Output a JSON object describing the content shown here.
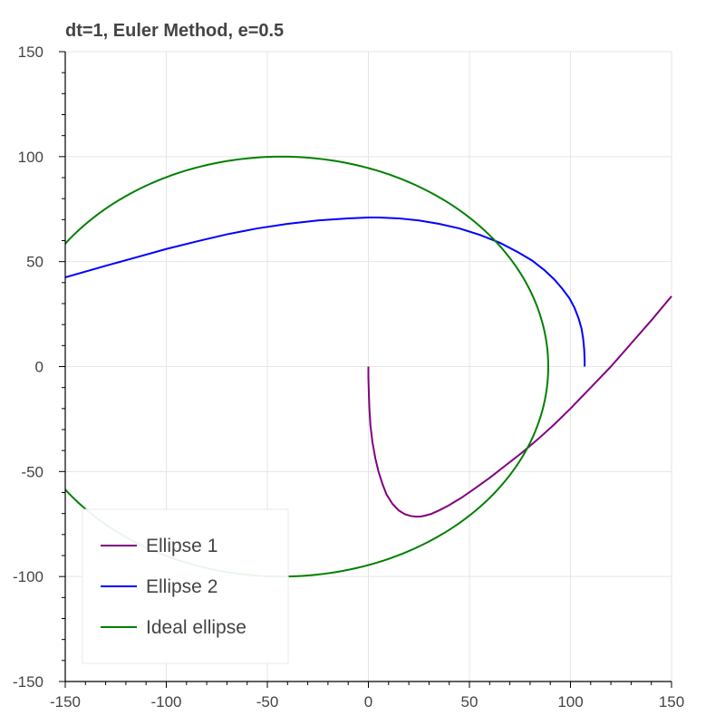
{
  "chart_data": {
    "type": "line",
    "title": "dt=1, Euler Method, e=0.5",
    "xlabel": "",
    "ylabel": "",
    "xlim": [
      -150,
      150
    ],
    "ylim": [
      -150,
      150
    ],
    "x_ticks": [
      -150,
      -100,
      -50,
      0,
      50,
      100,
      150
    ],
    "y_ticks": [
      -150,
      -100,
      -50,
      0,
      50,
      100,
      150
    ],
    "grid": true,
    "legend_position": "bottom-left",
    "series": [
      {
        "name": "Ellipse 1",
        "color": "#800080",
        "x": [
          0,
          0,
          0.2,
          0.5,
          1,
          2,
          3.5,
          5,
          7,
          9,
          12,
          15,
          18,
          21,
          24,
          26,
          28,
          31,
          35,
          40,
          46,
          52,
          60,
          68,
          76,
          84,
          92,
          100,
          110,
          120,
          130,
          140,
          150
        ],
        "y": [
          0,
          -5,
          -12,
          -20,
          -28,
          -36,
          -44,
          -50,
          -56,
          -61,
          -65.5,
          -68.5,
          -70.3,
          -71.2,
          -71.5,
          -71.4,
          -71,
          -70.2,
          -68.5,
          -66,
          -62.5,
          -58.5,
          -53,
          -47,
          -41,
          -34.5,
          -27.5,
          -20,
          -10,
          0,
          11,
          22,
          33.5
        ]
      },
      {
        "name": "Ellipse 2",
        "color": "#0000ff",
        "x": [
          107,
          107,
          106.8,
          106.3,
          105.5,
          104,
          102,
          99.5,
          96,
          92,
          87,
          81,
          74,
          65,
          55,
          45,
          35,
          25,
          15,
          5,
          0,
          -10,
          -25,
          -40,
          -55,
          -70,
          -85,
          -100,
          -115,
          -130,
          -150
        ],
        "y": [
          0,
          3,
          8,
          13,
          18,
          23,
          28,
          32.5,
          37,
          41.5,
          46,
          50.5,
          54.5,
          59,
          62.8,
          65.8,
          68,
          69.6,
          70.6,
          71,
          71,
          70.6,
          69.6,
          68,
          65.8,
          63,
          59.6,
          56,
          52,
          48,
          42.5
        ]
      },
      {
        "name": "Ideal ellipse",
        "color": "#008000",
        "center": [
          -43,
          0
        ],
        "semi_axes": [
          132,
          100
        ]
      }
    ]
  }
}
